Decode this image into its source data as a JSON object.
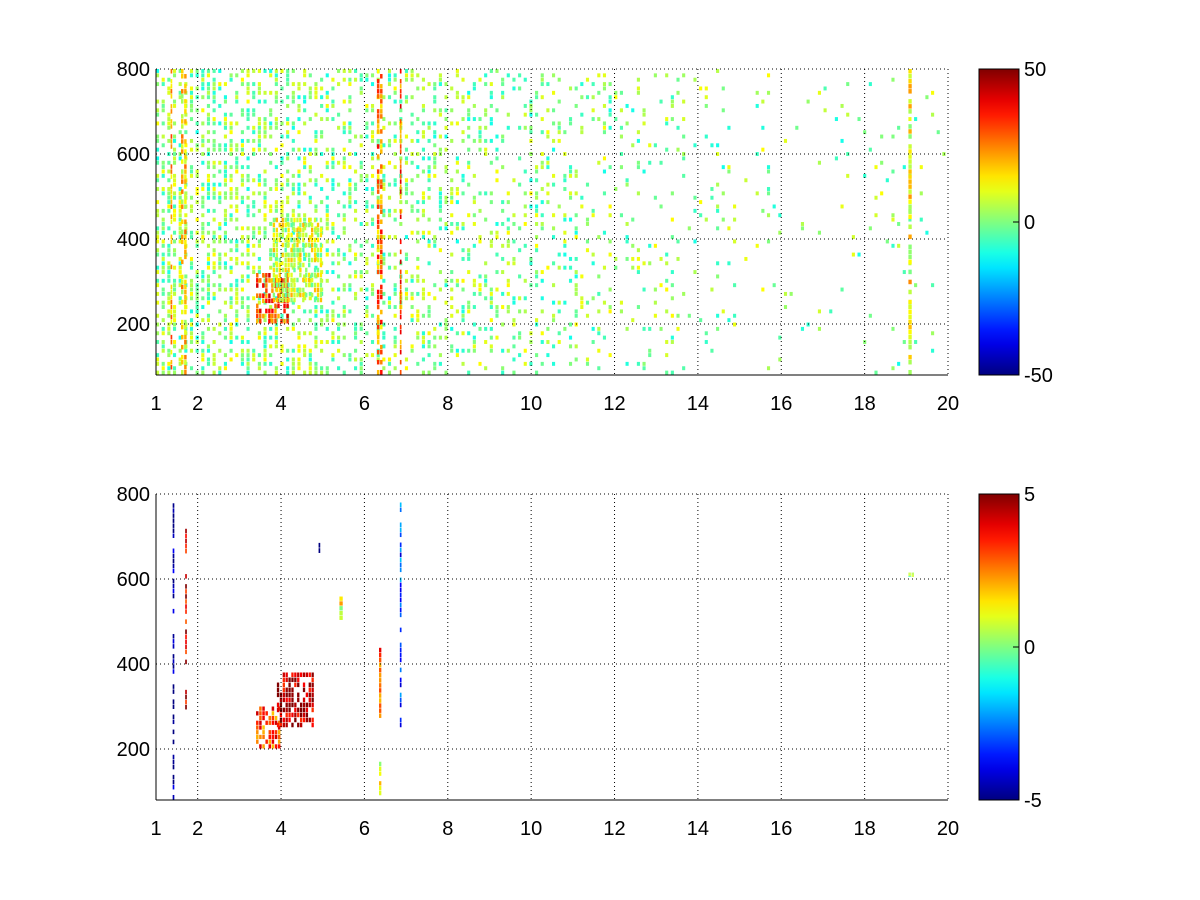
{
  "chart_data": [
    {
      "type": "heatmap",
      "title": "",
      "xlabel": "",
      "ylabel": "",
      "xlim": [
        1,
        20
      ],
      "ylim": [
        80,
        800
      ],
      "grid": true,
      "colormap": "jet",
      "x_ticks": [
        1,
        2,
        4,
        6,
        8,
        10,
        12,
        14,
        16,
        18,
        20
      ],
      "y_ticks": [
        200,
        400,
        600,
        800
      ],
      "colorbar": {
        "range": [
          -50,
          50
        ],
        "ticks": [
          50,
          0,
          -50
        ]
      },
      "approximate_features": [
        {
          "x_range": [
            1.35,
            1.4
          ],
          "y_range": [
            80,
            800
          ],
          "value": 20
        },
        {
          "x_range": [
            1.6,
            1.75
          ],
          "y_range": [
            80,
            800
          ],
          "value": 15
        },
        {
          "x_range": [
            3.4,
            4.2
          ],
          "y_range": [
            200,
            320
          ],
          "value": 30
        },
        {
          "x_range": [
            3.8,
            5.0
          ],
          "y_range": [
            250,
            450
          ],
          "value": 8
        },
        {
          "x_range": [
            6.3,
            6.45
          ],
          "y_range": [
            80,
            800
          ],
          "value": 25
        },
        {
          "x_range": [
            6.85,
            6.9
          ],
          "y_range": [
            80,
            800
          ],
          "value": 30
        },
        {
          "x_range": [
            19.05,
            19.15
          ],
          "y_range": [
            80,
            800
          ],
          "value": 12
        }
      ]
    },
    {
      "type": "heatmap",
      "title": "",
      "xlabel": "",
      "ylabel": "",
      "xlim": [
        1,
        20
      ],
      "ylim": [
        80,
        800
      ],
      "grid": true,
      "colormap": "jet",
      "x_ticks": [
        1,
        2,
        4,
        6,
        8,
        10,
        12,
        14,
        16,
        18,
        20
      ],
      "y_ticks": [
        200,
        400,
        600,
        800
      ],
      "colorbar": {
        "range": [
          -5,
          5
        ],
        "ticks": [
          5,
          0,
          -5
        ]
      },
      "approximate_features": [
        {
          "x_range": [
            1.4,
            1.45
          ],
          "y_range": [
            80,
            790
          ],
          "value": -5
        },
        {
          "x_range": [
            1.7,
            1.75
          ],
          "y_range": [
            280,
            730
          ],
          "value": 4
        },
        {
          "x_range": [
            3.4,
            4.0
          ],
          "y_range": [
            200,
            300
          ],
          "value": 3
        },
        {
          "x_range": [
            3.9,
            4.8
          ],
          "y_range": [
            250,
            380
          ],
          "value": 4.5
        },
        {
          "x_range": [
            4.9,
            4.95
          ],
          "y_range": [
            660,
            710
          ],
          "value": -4
        },
        {
          "x_range": [
            5.4,
            5.5
          ],
          "y_range": [
            480,
            570
          ],
          "value": 1
        },
        {
          "x_range": [
            6.35,
            6.42
          ],
          "y_range": [
            260,
            450
          ],
          "value": 3
        },
        {
          "x_range": [
            6.35,
            6.42
          ],
          "y_range": [
            90,
            170
          ],
          "value": 1
        },
        {
          "x_range": [
            6.85,
            6.9
          ],
          "y_range": [
            250,
            780
          ],
          "value": -3
        },
        {
          "x_range": [
            19.05,
            19.2
          ],
          "y_range": [
            605,
            615
          ],
          "value": 0
        }
      ]
    }
  ]
}
